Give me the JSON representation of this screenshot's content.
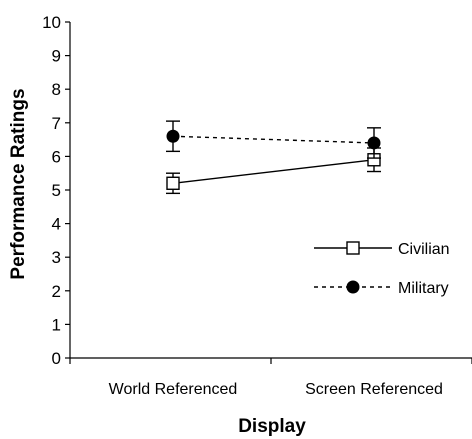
{
  "chart_data": {
    "type": "line",
    "title": "",
    "xlabel": "Display",
    "ylabel": "Performance Ratings",
    "categories": [
      "World Referenced",
      "Screen Referenced"
    ],
    "ylim": [
      0,
      10
    ],
    "yticks": [
      "0",
      "1",
      "2",
      "3",
      "4",
      "5",
      "6",
      "7",
      "8",
      "9",
      "10"
    ],
    "grid": false,
    "legend_position": "right",
    "series": [
      {
        "name": "Civilian",
        "values": [
          5.2,
          5.9
        ],
        "error": [
          0.3,
          0.35
        ],
        "marker": "open-square",
        "line_style": "solid",
        "color": "#000000"
      },
      {
        "name": "Military",
        "values": [
          6.6,
          6.4
        ],
        "error": [
          0.45,
          0.45
        ],
        "marker": "filled-circle",
        "line_style": "dashed",
        "color": "#000000"
      }
    ]
  }
}
